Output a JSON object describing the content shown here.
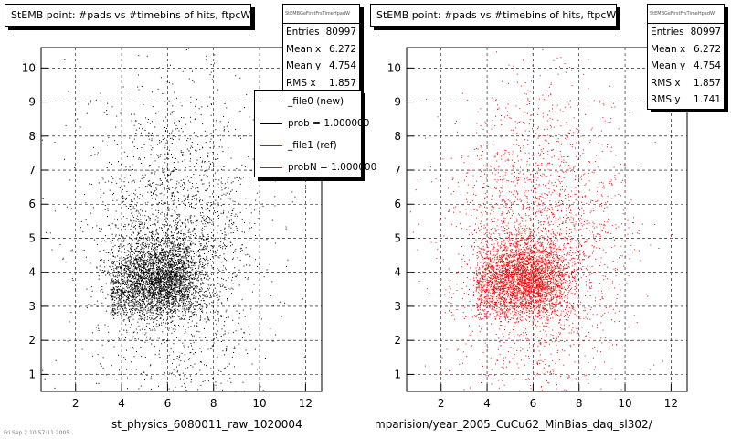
{
  "chart_data": [
    {
      "type": "scatter",
      "title": "StEMB point: #pads vs #timebins of hits, ftpcW",
      "xlabel": "st_physics_6080011_raw_1020004",
      "ylabel": "",
      "xlim": [
        0.5,
        12.7
      ],
      "ylim": [
        0.5,
        10.6
      ],
      "x_ticks": [
        2,
        4,
        6,
        8,
        10,
        12
      ],
      "y_ticks": [
        1,
        2,
        3,
        4,
        5,
        6,
        7,
        8,
        9,
        10
      ],
      "grid": true,
      "marker_color": "#000000",
      "stats": {
        "header": "StEMBGeFirstFrsTimeHpadW",
        "entries_label": "Entries",
        "entries": "80997",
        "meanx_label": "Mean x",
        "meanx": "6.272",
        "meany_label": "Mean y",
        "meany": "4.754",
        "rmsx_label": "RMS x",
        "rmsx": "1.857"
      },
      "legend": {
        "placement": "top-right",
        "entries": [
          {
            "label": "_file0 (new)",
            "color": "#000000"
          },
          {
            "label": "prob = 1.000000",
            "color": "#000000"
          },
          {
            "label": "_file1 (ref)",
            "color": "#ff0000"
          },
          {
            "label": "probN = 1.000000",
            "color": "#ff0000"
          }
        ]
      },
      "density": {
        "core": {
          "x": [
            3.5,
            8
          ],
          "y": [
            2.5,
            5.5
          ]
        },
        "mean": [
          6.272,
          4.754
        ],
        "rms": [
          1.857,
          1.741
        ]
      }
    },
    {
      "type": "scatter",
      "title": "StEMB point: #pads vs #timebins of hits, ftpcW",
      "xlabel": "mparision/year_2005_CuCu62_MinBias_daq_sl302/",
      "ylabel": "",
      "xlim": [
        0.5,
        12.7
      ],
      "ylim": [
        0.5,
        10.6
      ],
      "x_ticks": [
        2,
        4,
        6,
        8,
        10,
        12
      ],
      "y_ticks": [
        1,
        2,
        3,
        4,
        5,
        6,
        7,
        8,
        9,
        10
      ],
      "grid": true,
      "marker_color": "#ff0000",
      "stats": {
        "header": "StEMBGeFirstFrsTimeHpadW",
        "entries_label": "Entries",
        "entries": "80997",
        "meanx_label": "Mean x",
        "meanx": "6.272",
        "meany_label": "Mean y",
        "meany": "4.754",
        "rmsx_label": "RMS x",
        "rmsx": "1.857",
        "rmsy_label": "RMS y",
        "rmsy": "1.741"
      },
      "density": {
        "core": {
          "x": [
            3.5,
            8
          ],
          "y": [
            2.5,
            5.5
          ]
        },
        "mean": [
          6.272,
          4.754
        ],
        "rms": [
          1.857,
          1.741
        ]
      }
    }
  ],
  "footer_text": "Fri Sep  2 10:57:11 2005"
}
